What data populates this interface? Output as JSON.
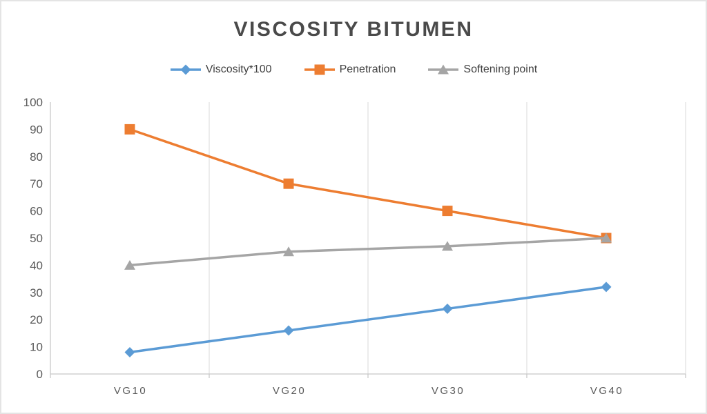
{
  "chart_data": {
    "type": "line",
    "title": "VISCOSITY BITUMEN",
    "categories": [
      "VG10",
      "VG20",
      "VG30",
      "VG40"
    ],
    "series": [
      {
        "name": "Viscosity*100",
        "color": "#5B9BD5",
        "marker": "diamond",
        "values": [
          8,
          16,
          24,
          32
        ]
      },
      {
        "name": "Penetration",
        "color": "#ED7D31",
        "marker": "square",
        "values": [
          90,
          70,
          60,
          50
        ]
      },
      {
        "name": "Softening point",
        "color": "#A5A5A5",
        "marker": "triangle",
        "values": [
          40,
          45,
          47,
          50
        ]
      }
    ],
    "xlabel": "",
    "ylabel": "",
    "ylim": [
      0,
      100
    ],
    "ytick_step": 10,
    "legend_position": "top",
    "gridlines": "vertical-only",
    "gridline_color": "#D9D9D9",
    "axis_color": "#C8C8C8",
    "tick_label_color": "#595959",
    "title_color": "#4a4a4a"
  }
}
